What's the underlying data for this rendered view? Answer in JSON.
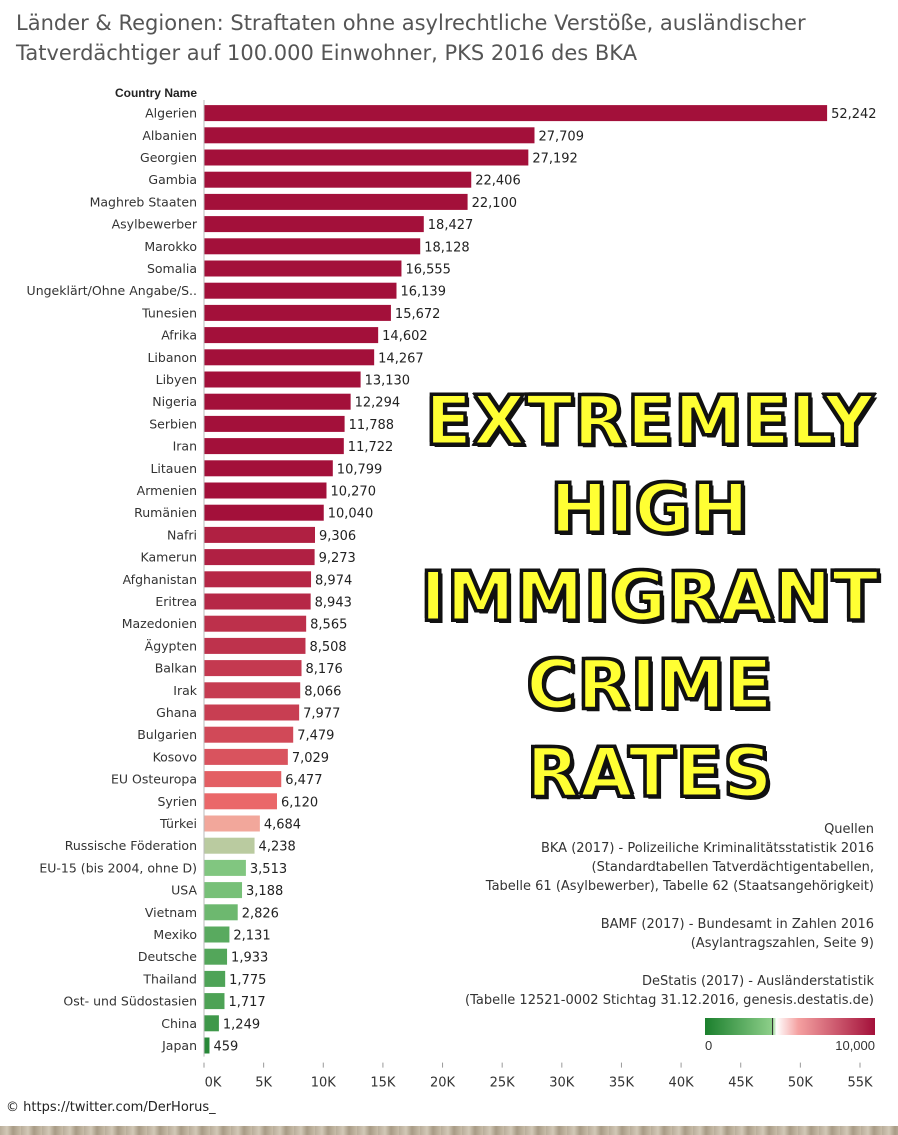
{
  "title_lines": [
    "Länder & Regionen: Straftaten ohne asylrechtliche Verstöße, ausländischer",
    "Tatverdächtiger auf 100.000 Einwohner, PKS 2016 des BKA"
  ],
  "chart_data": {
    "type": "bar",
    "orientation": "horizontal",
    "title": "Länder & Regionen: Straftaten ohne asylrechtliche Verstöße, ausländischer Tatverdächtiger auf 100.000 Einwohner, PKS 2016 des BKA",
    "category_header": "Country Name",
    "categories": [
      "Algerien",
      "Albanien",
      "Georgien",
      "Gambia",
      "Maghreb Staaten",
      "Asylbewerber",
      "Marokko",
      "Somalia",
      "Ungeklärt/Ohne Angabe/S..",
      "Tunesien",
      "Afrika",
      "Libanon",
      "Libyen",
      "Nigeria",
      "Serbien",
      "Iran",
      "Litauen",
      "Armenien",
      "Rumänien",
      "Nafri",
      "Kamerun",
      "Afghanistan",
      "Eritrea",
      "Mazedonien",
      "Ägypten",
      "Balkan",
      "Irak",
      "Ghana",
      "Bulgarien",
      "Kosovo",
      "EU Osteuropa",
      "Syrien",
      "Türkei",
      "Russische Föderation",
      "EU-15 (bis 2004, ohne D)",
      "USA",
      "Vietnam",
      "Mexiko",
      "Deutsche",
      "Thailand",
      "Ost- und Südostasien",
      "China",
      "Japan"
    ],
    "values": [
      52242,
      27709,
      27192,
      22406,
      22100,
      18427,
      18128,
      16555,
      16139,
      15672,
      14602,
      14267,
      13130,
      12294,
      11788,
      11722,
      10799,
      10270,
      10040,
      9306,
      9273,
      8974,
      8943,
      8565,
      8508,
      8176,
      8066,
      7977,
      7479,
      7029,
      6477,
      6120,
      4684,
      4238,
      3513,
      3188,
      2826,
      2131,
      1933,
      1775,
      1717,
      1249,
      459
    ],
    "value_labels": [
      "52,242",
      "27,709",
      "27,192",
      "22,406",
      "22,100",
      "18,427",
      "18,128",
      "16,555",
      "16,139",
      "15,672",
      "14,602",
      "14,267",
      "13,130",
      "12,294",
      "11,788",
      "11,722",
      "10,799",
      "10,270",
      "10,040",
      "9,306",
      "9,273",
      "8,974",
      "8,943",
      "8,565",
      "8,508",
      "8,176",
      "8,066",
      "7,977",
      "7,479",
      "7,029",
      "6,477",
      "6,120",
      "4,684",
      "4,238",
      "3,513",
      "3,188",
      "2,826",
      "2,131",
      "1,933",
      "1,775",
      "1,717",
      "1,249",
      "459"
    ],
    "xlim": [
      0,
      55000
    ],
    "xticks": [
      0,
      5000,
      10000,
      15000,
      20000,
      25000,
      30000,
      35000,
      40000,
      45000,
      50000,
      55000
    ],
    "xtick_labels": [
      "0K",
      "5K",
      "10K",
      "15K",
      "20K",
      "25K",
      "30K",
      "35K",
      "40K",
      "45K",
      "50K",
      "55K"
    ],
    "color_scale": {
      "min": 0,
      "max": 10000,
      "min_label": "0",
      "max_label": "10,000",
      "low_color": "#1b7f2d",
      "mid_color": "#ffffff",
      "high_color": "#a3103a"
    },
    "grid": false
  },
  "overlay_text": [
    "EXTREMELY",
    "HIGH",
    "IMMIGRANT",
    "CRIME",
    "RATES"
  ],
  "sources": {
    "heading": "Quellen",
    "blocks": [
      [
        "BKA (2017) - Polizeiliche Kriminalitätsstatistik 2016",
        "(Standardtabellen Tatverdächtigentabellen,",
        "Tabelle 61 (Asylbewerber), Tabelle 62 (Staatsangehörigkeit)"
      ],
      [
        "BAMF (2017) - Bundesamt in Zahlen 2016",
        "(Asylantragszahlen, Seite 9)"
      ],
      [
        "DeStatis (2017) -  Ausländerstatistik",
        "(Tabelle 12521-0002 Stichtag 31.12.2016,  genesis.destatis.de)"
      ]
    ]
  },
  "credit": "© https://twitter.com/DerHorus_",
  "colors": {
    "overlay_fill": "#ffff33",
    "overlay_outline": "#111111"
  }
}
